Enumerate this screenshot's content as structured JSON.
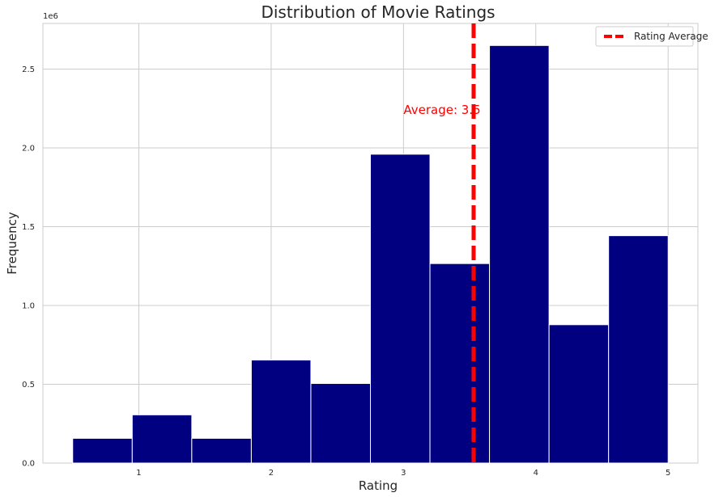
{
  "chart_data": {
    "type": "bar",
    "title": "Distribution of Movie Ratings",
    "xlabel": "Rating",
    "ylabel": "Frequency",
    "y_offset_label": "1e6",
    "xlim": [
      0.275,
      5.225
    ],
    "ylim": [
      0,
      2.79
    ],
    "x_ticks": [
      1,
      2,
      3,
      4,
      5
    ],
    "x_tick_labels": [
      "1",
      "2",
      "3",
      "4",
      "5"
    ],
    "y_ticks": [
      0,
      0.5,
      1.0,
      1.5,
      2.0,
      2.5
    ],
    "y_tick_labels": [
      "0.0",
      "0.5",
      "1.0",
      "1.5",
      "2.0",
      "2.5"
    ],
    "bin_edges": [
      0.5,
      0.95,
      1.4,
      1.85,
      2.3,
      2.75,
      3.2,
      3.65,
      4.1,
      4.55,
      5.0
    ],
    "values": [
      0.157,
      0.306,
      0.157,
      0.654,
      0.505,
      1.96,
      1.266,
      2.65,
      0.878,
      1.443
    ],
    "bar_color": "#000080",
    "grid": true,
    "average_line": {
      "x": 3.53,
      "color": "#ff0000",
      "style": "dashed",
      "label": "Rating Average"
    },
    "annotation": {
      "text": "Average: 3.5",
      "x": 3.0,
      "y": 2.24,
      "color": "#ff0000"
    },
    "legend": {
      "position": "top-right",
      "entries": [
        "Rating Average"
      ]
    }
  }
}
